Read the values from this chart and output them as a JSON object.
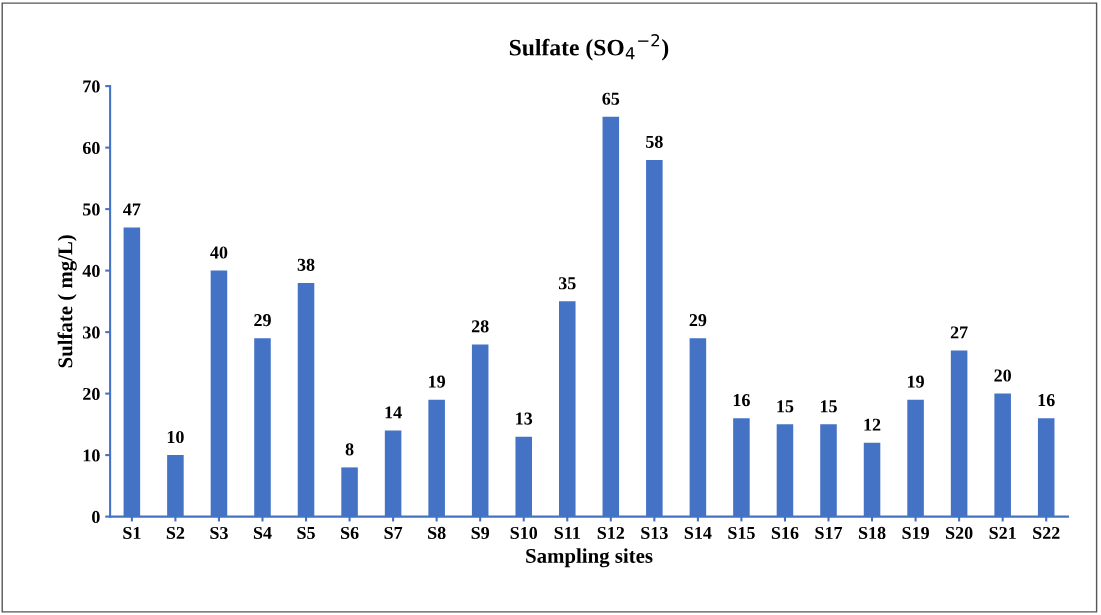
{
  "chart_data": {
    "type": "bar",
    "title": "Sulfate (SO$_{4}$$^{−2}$)",
    "xlabel": "Sampling sites",
    "ylabel": "Sulfate ( mg/L)",
    "categories": [
      "S1",
      "S2",
      "S3",
      "S4",
      "S5",
      "S6",
      "S7",
      "S8",
      "S9",
      "S10",
      "S11",
      "S12",
      "S13",
      "S14",
      "S15",
      "S16",
      "S17",
      "S18",
      "S19",
      "S20",
      "S21",
      "S22"
    ],
    "values": [
      47,
      10,
      40,
      29,
      38,
      8,
      14,
      19,
      28,
      13,
      35,
      65,
      58,
      29,
      16,
      15,
      15,
      12,
      19,
      27,
      20,
      16
    ],
    "color": "#4472c4",
    "ylim": [
      0,
      70
    ],
    "yticks": [
      0,
      10,
      20,
      30,
      40,
      50,
      60,
      70
    ],
    "grid": false,
    "data_labels": true
  }
}
